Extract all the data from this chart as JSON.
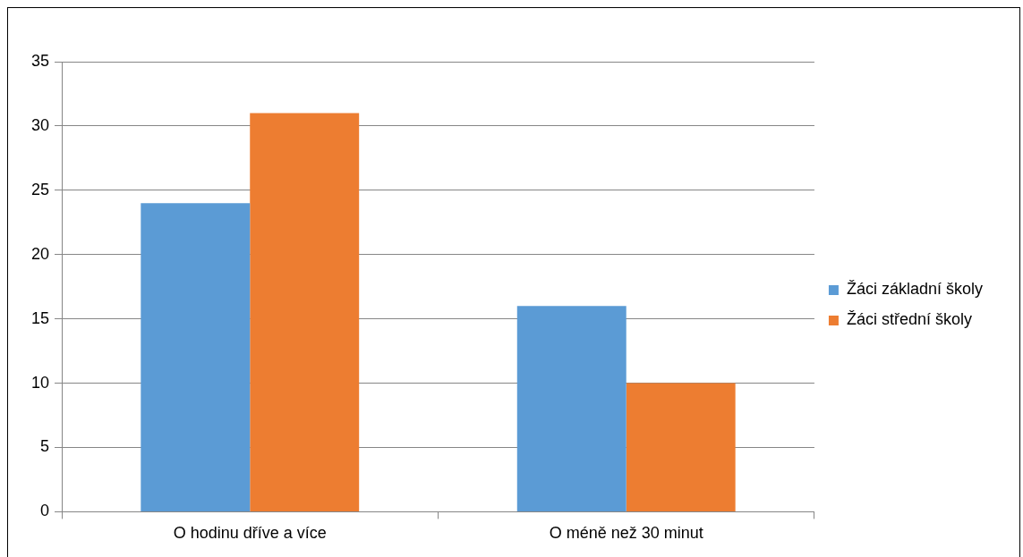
{
  "chart_data": {
    "type": "bar",
    "categories": [
      "O hodinu dříve a více",
      "O méně než 30 minut"
    ],
    "series": [
      {
        "name": "Žáci základní školy",
        "color": "#5b9bd5",
        "values": [
          24,
          16
        ]
      },
      {
        "name": "Žáci střední školy",
        "color": "#ed7d31",
        "values": [
          31,
          10
        ]
      }
    ],
    "ylim": [
      0,
      35
    ],
    "yticks": [
      0,
      5,
      10,
      15,
      20,
      25,
      30,
      35
    ],
    "grid": "y",
    "legend": "right"
  }
}
